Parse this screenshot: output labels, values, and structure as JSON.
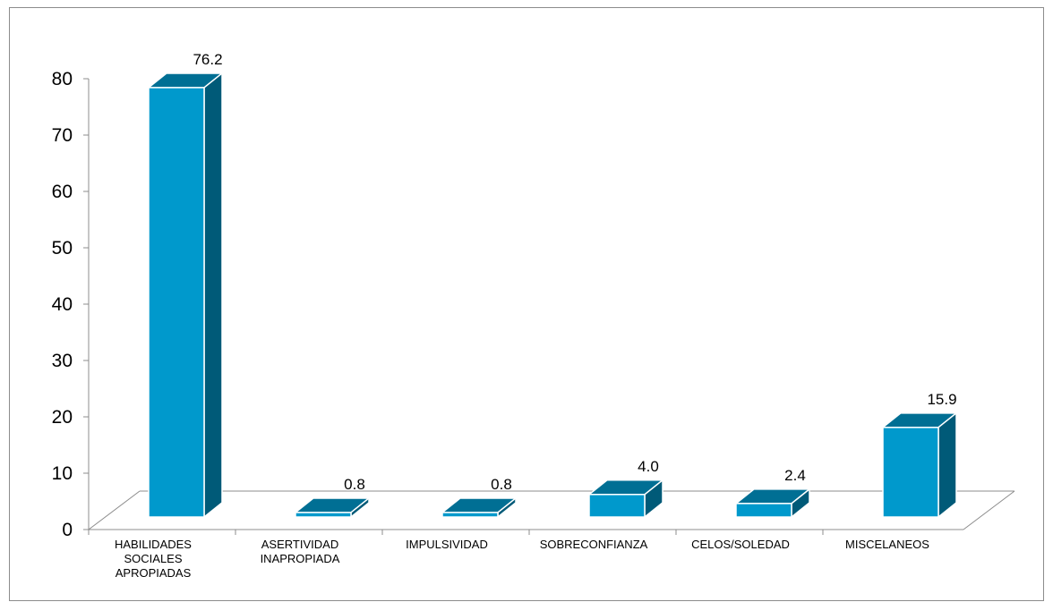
{
  "chart_data": {
    "type": "bar",
    "style": "3d-column",
    "categories": [
      "HABILIDADES\nSOCIALES\nAPROPIADAS",
      "ASERTIVIDAD\nINAPROPIADA",
      "IMPULSIVIDAD",
      "SOBRECONFIANZA",
      "CELOS/SOLEDAD",
      "MISCELANEOS"
    ],
    "values": [
      76.2,
      0.8,
      0.8,
      4.0,
      2.4,
      15.9
    ],
    "data_labels": [
      "76.2",
      "0.8",
      "0.8",
      "4.0",
      "2.4",
      "15.9"
    ],
    "title": "",
    "xlabel": "",
    "ylabel": "",
    "ylim": [
      0,
      80
    ],
    "yticks": [
      0,
      10,
      20,
      30,
      40,
      50,
      60,
      70,
      80
    ],
    "grid": false,
    "legend": "none",
    "colors": {
      "front": "#0099cc",
      "top": "#006f94",
      "side": "#005a78",
      "edge": "#ffffff",
      "axis": "#8c8c8c"
    }
  }
}
